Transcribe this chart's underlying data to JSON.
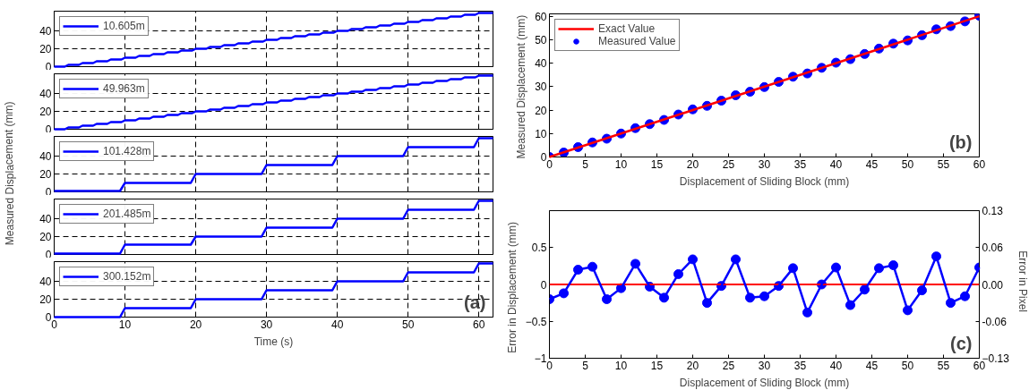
{
  "chart_data": [
    {
      "type": "line",
      "xlim": [
        0,
        62
      ],
      "ylim": [
        0,
        62
      ],
      "xticks": [
        0,
        10,
        20,
        30,
        40,
        50,
        60
      ],
      "yticks": [
        0,
        20,
        40
      ],
      "grid": true,
      "legend": "top left",
      "tick_labels": "y",
      "series": [
        {
          "name": "10.605m",
          "color": "#0000ff",
          "x": [
            0,
            1.5,
            2,
            3.5,
            4,
            5.5,
            6,
            7.5,
            8,
            9.5,
            10,
            11.5,
            12,
            13.5,
            14,
            15.5,
            16,
            17.5,
            18,
            19.5,
            20,
            21.5,
            22,
            23.5,
            24,
            25.5,
            26,
            27.5,
            28,
            29.5,
            30,
            31.5,
            32,
            33.5,
            34,
            35.5,
            36,
            37.5,
            38,
            39.5,
            40,
            41.5,
            42,
            43.5,
            44,
            45.5,
            46,
            47.5,
            48,
            49.5,
            50,
            51.5,
            52,
            53.5,
            54,
            55.5,
            56,
            57.5,
            58,
            59.5,
            60,
            62
          ],
          "values": [
            0,
            0,
            2,
            2,
            4,
            4,
            6,
            6,
            8,
            8,
            10,
            10,
            12,
            12,
            14,
            14,
            16,
            16,
            18,
            18,
            20,
            20,
            22,
            22,
            24,
            24,
            26,
            26,
            28,
            28,
            30,
            30,
            32,
            32,
            34,
            34,
            36,
            36,
            38,
            38,
            40,
            40,
            42,
            42,
            44,
            44,
            46,
            46,
            48,
            48,
            50,
            50,
            52,
            52,
            54,
            54,
            56,
            56,
            58,
            58,
            60,
            60
          ]
        }
      ]
    },
    {
      "type": "line",
      "xlim": [
        0,
        62
      ],
      "ylim": [
        0,
        62
      ],
      "xticks": [
        0,
        10,
        20,
        30,
        40,
        50,
        60
      ],
      "yticks": [
        0,
        20,
        40
      ],
      "grid": true,
      "legend": "top left",
      "tick_labels": "y",
      "series": [
        {
          "name": "49.963m",
          "color": "#0000ff",
          "x": [
            0,
            1.5,
            2,
            3.5,
            4,
            5.5,
            6,
            7.5,
            8,
            9.5,
            10,
            11.5,
            12,
            13.5,
            14,
            15.5,
            16,
            17.5,
            18,
            19.5,
            20,
            21.5,
            22,
            23.5,
            24,
            25.5,
            26,
            27.5,
            28,
            29.5,
            30,
            31.5,
            32,
            33.5,
            34,
            35.5,
            36,
            37.5,
            38,
            39.5,
            40,
            41.5,
            42,
            43.5,
            44,
            45.5,
            46,
            47.5,
            48,
            49.5,
            50,
            51.5,
            52,
            53.5,
            54,
            55.5,
            56,
            57.5,
            58,
            59.5,
            60,
            62
          ],
          "values": [
            0,
            0,
            2,
            2,
            4,
            4,
            6,
            6,
            8,
            8,
            10,
            10,
            12,
            12,
            14,
            14,
            16,
            16,
            18,
            18,
            20,
            20,
            22,
            22,
            24,
            24,
            26,
            26,
            28,
            28,
            30,
            30,
            32,
            32,
            34,
            34,
            36,
            36,
            38,
            38,
            40,
            40,
            42,
            42,
            44,
            44,
            46,
            46,
            48,
            48,
            50,
            50,
            52,
            52,
            54,
            54,
            56,
            56,
            58,
            58,
            60,
            60
          ]
        }
      ]
    },
    {
      "type": "line",
      "xlim": [
        0,
        62
      ],
      "ylim": [
        0,
        62
      ],
      "xticks": [
        0,
        10,
        20,
        30,
        40,
        50,
        60
      ],
      "yticks": [
        0,
        20,
        40
      ],
      "grid": true,
      "legend": "top left",
      "tick_labels": "y",
      "ylabel": "Measured  Displacement  (mm)",
      "series": [
        {
          "name": "101.428m",
          "color": "#0000ff",
          "x": [
            0,
            9.3,
            10,
            19.3,
            20,
            29.3,
            30,
            39.3,
            40,
            49.3,
            50,
            59.3,
            60,
            62
          ],
          "values": [
            1,
            1,
            10,
            10,
            20,
            20,
            30,
            30,
            40,
            40,
            50,
            50,
            60,
            60
          ]
        }
      ]
    },
    {
      "type": "line",
      "xlim": [
        0,
        62
      ],
      "ylim": [
        0,
        62
      ],
      "xticks": [
        0,
        10,
        20,
        30,
        40,
        50,
        60
      ],
      "yticks": [
        0,
        20,
        40
      ],
      "grid": true,
      "legend": "top left",
      "tick_labels": "y",
      "series": [
        {
          "name": "201.485m",
          "color": "#0000ff",
          "x": [
            0,
            9.3,
            10,
            19.3,
            20,
            29.3,
            30,
            39.3,
            40,
            49.3,
            50,
            59.3,
            60,
            62
          ],
          "values": [
            1,
            1,
            11,
            11,
            20,
            20,
            30,
            30,
            40,
            40,
            50,
            50,
            60,
            60
          ]
        }
      ]
    },
    {
      "type": "line",
      "xlim": [
        0,
        62
      ],
      "ylim": [
        0,
        62
      ],
      "xticks": [
        0,
        10,
        20,
        30,
        40,
        50,
        60
      ],
      "yticks": [
        0,
        20,
        40
      ],
      "grid": true,
      "legend": "top left",
      "xlabel": "Time (s)",
      "annotations": [
        "(a)"
      ],
      "series": [
        {
          "name": "300.152m",
          "color": "#0000ff",
          "x": [
            0,
            9.3,
            10,
            19.3,
            20,
            29.3,
            30,
            39.3,
            40,
            49.3,
            50,
            59.3,
            60,
            62
          ],
          "values": [
            0,
            0,
            10,
            10,
            20,
            20,
            30,
            30,
            40,
            40,
            50,
            50,
            60,
            60
          ]
        }
      ]
    },
    {
      "type": "line",
      "xlim": [
        0,
        60
      ],
      "ylim": [
        0,
        61
      ],
      "xticks": [
        0,
        5,
        10,
        15,
        20,
        25,
        30,
        35,
        40,
        45,
        50,
        55,
        60
      ],
      "yticks": [
        0,
        10,
        20,
        30,
        40,
        50,
        60
      ],
      "legend": "top left",
      "xlabel": "Displacement of Sliding Block (mm)",
      "ylabel": "Measured  Displacement (mm)",
      "annotations": [
        "(b)"
      ],
      "series": [
        {
          "name": "Exact Value",
          "color": "#ff0000",
          "x": [
            0,
            60
          ],
          "values": [
            0,
            60
          ]
        },
        {
          "name": "Measured Value",
          "type": "scatter",
          "marker": "circle",
          "color": "#0000ff",
          "x": [
            0,
            2,
            4,
            6,
            8,
            10,
            12,
            14,
            16,
            18,
            20,
            22,
            24,
            26,
            28,
            30,
            32,
            34,
            36,
            38,
            40,
            42,
            44,
            46,
            48,
            50,
            52,
            54,
            56,
            58,
            60
          ],
          "values": [
            0,
            1.9,
            4.2,
            6.2,
            7.8,
            10.0,
            12.3,
            14.0,
            15.8,
            18.1,
            20.3,
            21.8,
            24.0,
            26.3,
            27.8,
            29.8,
            32.0,
            34.2,
            35.6,
            38.0,
            40.2,
            41.7,
            43.9,
            46.2,
            48.3,
            49.7,
            51.9,
            54.4,
            55.8,
            57.8,
            60.2
          ]
        }
      ]
    },
    {
      "type": "line",
      "xlim": [
        0,
        60
      ],
      "ylim": [
        -1,
        1
      ],
      "xticks": [
        0,
        5,
        10,
        15,
        20,
        25,
        30,
        35,
        40,
        45,
        50,
        55,
        60
      ],
      "yticks": [
        -1,
        -0.5,
        0,
        0.5
      ],
      "y2lim": [
        -0.13,
        0.13
      ],
      "y2ticks": [
        -0.13,
        {
          "value": -0.065,
          "label": "-0.06"
        },
        {
          "value": 0,
          "label": "0.00"
        },
        {
          "value": 0.065,
          "label": "0.06"
        },
        0.13
      ],
      "marker": "circle",
      "xlabel": "Displacement of Sliding Block (mm)",
      "ylabel": "Error  in  Displacement (mm)",
      "y2label": "Error  in  Pixel",
      "annotations": [
        "(c)"
      ],
      "ref_lines": [
        {
          "axis": "y",
          "value": 0,
          "color": "#ff0000"
        }
      ],
      "series": [
        {
          "color": "#0000ff",
          "x": [
            0,
            2,
            4,
            6,
            8,
            10,
            12,
            14,
            16,
            18,
            20,
            22,
            24,
            26,
            28,
            30,
            32,
            34,
            36,
            38,
            40,
            42,
            44,
            46,
            48,
            50,
            52,
            54,
            56,
            58,
            60
          ],
          "values": [
            -0.2,
            -0.12,
            0.2,
            0.24,
            -0.2,
            -0.05,
            0.28,
            -0.03,
            -0.18,
            0.14,
            0.34,
            -0.25,
            -0.02,
            0.34,
            -0.18,
            -0.16,
            -0.02,
            0.22,
            -0.38,
            0,
            0.23,
            -0.28,
            -0.07,
            0.22,
            0.26,
            -0.35,
            -0.08,
            0.38,
            -0.25,
            -0.16,
            0.23
          ]
        }
      ]
    }
  ]
}
